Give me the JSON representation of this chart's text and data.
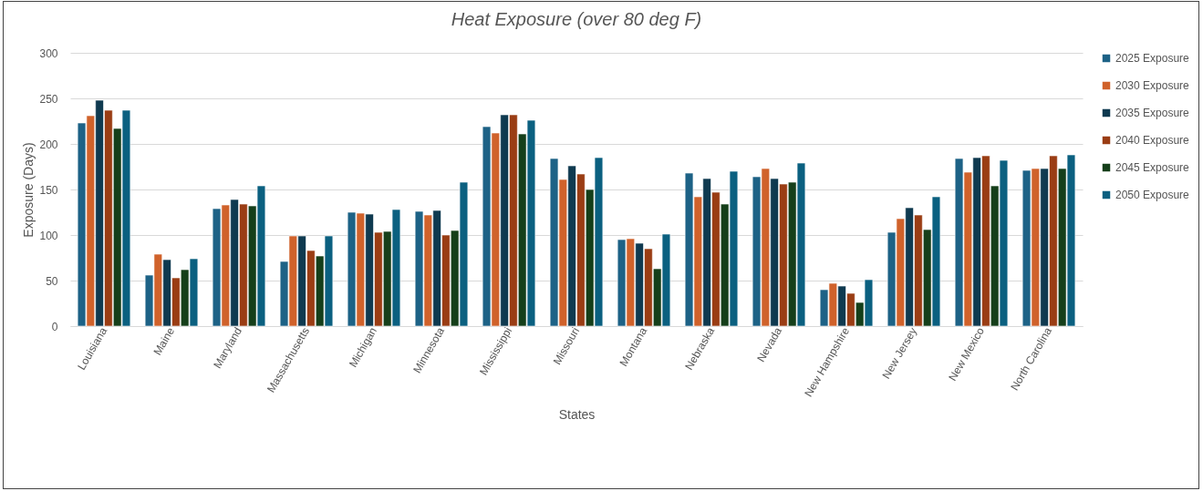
{
  "chart_data": {
    "type": "bar",
    "title": "Heat Exposure (over 80 deg F)",
    "xlabel": "States",
    "ylabel": "Exposure (Days)",
    "categories": [
      "Louisiana",
      "Maine",
      "Maryland",
      "Massachusetts",
      "Michigan",
      "Minnesota",
      "Mississippi",
      "Missouri",
      "Montana",
      "Nebraska",
      "Nevada",
      "New Hampshire",
      "New Jersey",
      "New Mexico",
      "North Carolina"
    ],
    "series": [
      {
        "name": "2025 Exposure",
        "color": "#1d6286",
        "values": [
          223,
          56,
          129,
          71,
          125,
          126,
          219,
          184,
          95,
          168,
          164,
          40,
          103,
          184,
          171
        ]
      },
      {
        "name": "2030 Exposure",
        "color": "#d0622b",
        "values": [
          231,
          79,
          133,
          99,
          124,
          122,
          212,
          161,
          96,
          142,
          173,
          47,
          118,
          169,
          173
        ]
      },
      {
        "name": "2035 Exposure",
        "color": "#0f3a50",
        "values": [
          248,
          73,
          139,
          99,
          123,
          127,
          232,
          176,
          91,
          162,
          162,
          44,
          130,
          185,
          173
        ]
      },
      {
        "name": "2040 Exposure",
        "color": "#9a3d14",
        "values": [
          237,
          53,
          134,
          83,
          103,
          100,
          232,
          167,
          85,
          147,
          156,
          36,
          122,
          187,
          187
        ]
      },
      {
        "name": "2045 Exposure",
        "color": "#153f1a",
        "values": [
          217,
          62,
          132,
          77,
          104,
          105,
          211,
          150,
          63,
          134,
          158,
          26,
          106,
          154,
          173
        ]
      },
      {
        "name": "2050 Exposure",
        "color": "#0b6080",
        "values": [
          237,
          74,
          154,
          99,
          128,
          158,
          226,
          185,
          101,
          170,
          179,
          51,
          142,
          182,
          188
        ]
      }
    ],
    "ylim": [
      0,
      300
    ],
    "yticks": [
      0,
      50,
      100,
      150,
      200,
      250,
      300
    ],
    "grid": "y",
    "legend": "right"
  }
}
